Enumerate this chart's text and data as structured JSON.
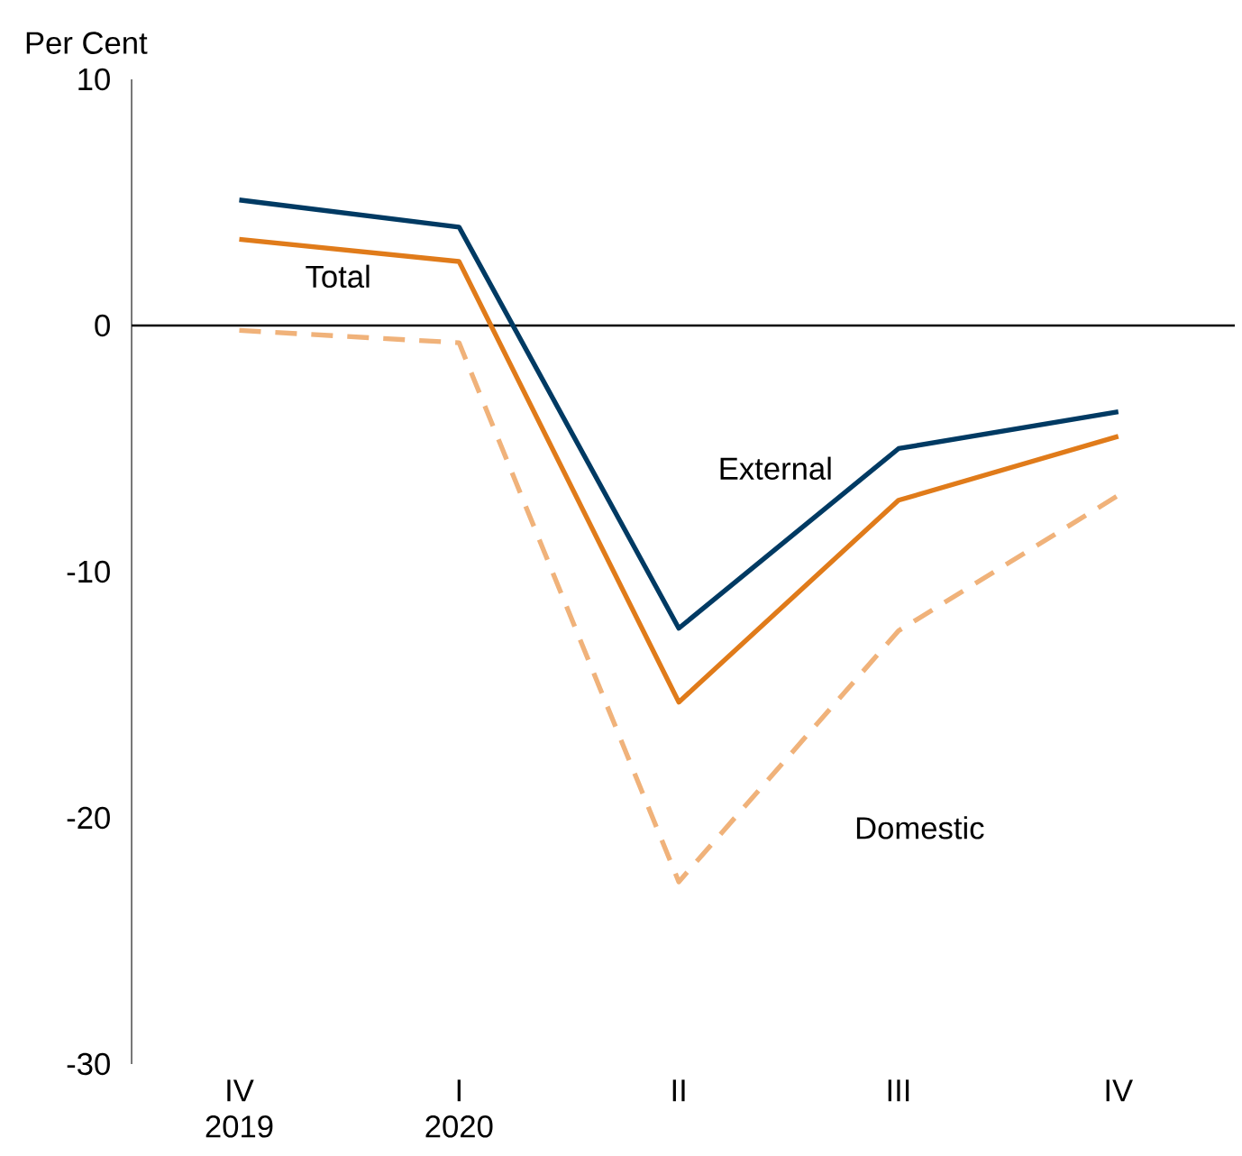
{
  "chart_data": {
    "type": "line",
    "ylabel": "Per Cent",
    "categories": [
      "IV 2019",
      "I 2020",
      "II",
      "III",
      "IV"
    ],
    "series": [
      {
        "name": "External",
        "color": "#003a63",
        "values": [
          5.1,
          4.0,
          -12.3,
          -5.0,
          -3.5
        ]
      },
      {
        "name": "Total",
        "color": "#e07b1a",
        "values": [
          3.5,
          2.6,
          -15.3,
          -7.1,
          -4.5
        ]
      },
      {
        "name": "Domestic",
        "color": "#f0b27a",
        "line_style": "dashed",
        "values": [
          -0.2,
          -0.7,
          -22.6,
          -12.4,
          -6.9
        ]
      }
    ],
    "ylim": [
      -30,
      10
    ],
    "yticks": [
      -30,
      -20,
      -10,
      0,
      10
    ],
    "ref_lines": [
      {
        "axis": "y",
        "value": 0,
        "color": "#000000"
      }
    ],
    "legend": false,
    "grid": false,
    "marker": "none"
  }
}
